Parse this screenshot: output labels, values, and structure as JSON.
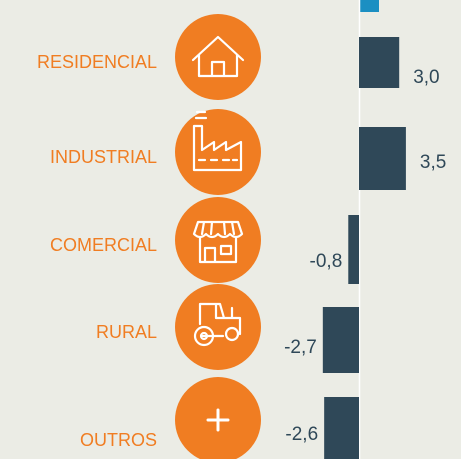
{
  "chart_data": {
    "type": "bar",
    "orientation": "horizontal",
    "categories": [
      "RESIDENCIAL",
      "INDUSTRIAL",
      "COMERCIAL",
      "RURAL",
      "OUTROS"
    ],
    "values": [
      3.0,
      3.5,
      -0.8,
      -2.7,
      -2.6
    ],
    "value_labels": [
      "3,0",
      "3,5",
      "-0,8",
      "-2,7",
      "-2,6"
    ],
    "color": "#2f4858"
  }
}
